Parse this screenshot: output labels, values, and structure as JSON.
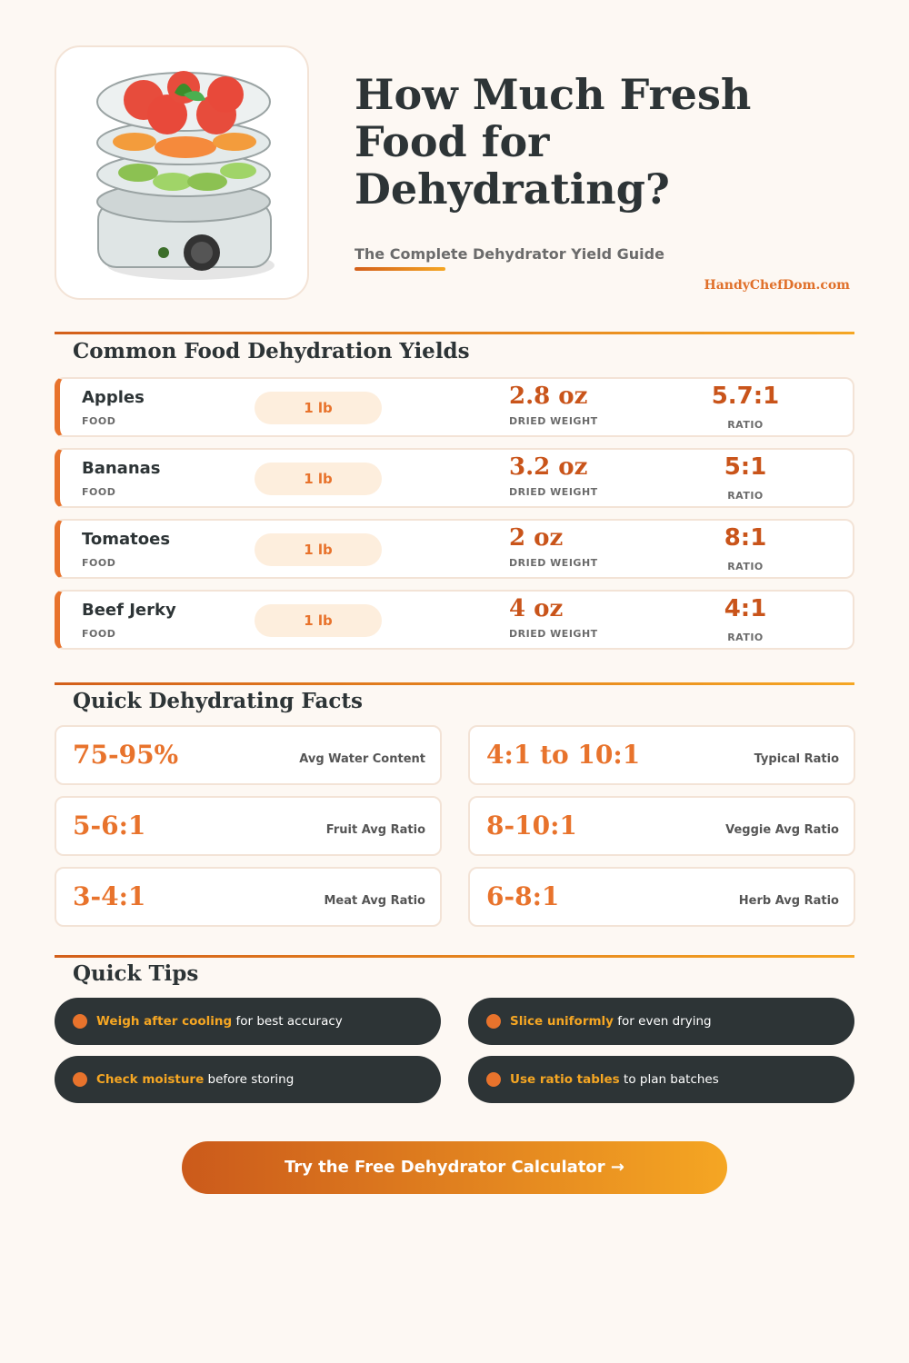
{
  "header": {
    "title": "How Much Fresh Food for Dehydrating?",
    "subtitle": "The Complete Dehydrator Yield Guide",
    "brand": "HandyChefDom.com",
    "image": "food-dehydrator-illustration"
  },
  "yields": {
    "title": "Common Food Dehydration Yields",
    "food_label": "FOOD",
    "dried_label": "DRIED WEIGHT",
    "ratio_label": "RATIO",
    "rows": [
      {
        "food": "Apples",
        "fresh": "1 lb",
        "dried": "2.8 oz",
        "ratio": "5.7:1"
      },
      {
        "food": "Bananas",
        "fresh": "1 lb",
        "dried": "3.2 oz",
        "ratio": "5:1"
      },
      {
        "food": "Tomatoes",
        "fresh": "1 lb",
        "dried": "2 oz",
        "ratio": "8:1"
      },
      {
        "food": "Beef Jerky",
        "fresh": "1 lb",
        "dried": "4 oz",
        "ratio": "4:1"
      }
    ]
  },
  "facts": {
    "title": "Quick Dehydrating Facts",
    "items": [
      {
        "value": "75-95%",
        "label": "Avg Water Content"
      },
      {
        "value": "4:1 to 10:1",
        "label": "Typical Ratio"
      },
      {
        "value": "5-6:1",
        "label": "Fruit Avg Ratio"
      },
      {
        "value": "8-10:1",
        "label": "Veggie Avg Ratio"
      },
      {
        "value": "3-4:1",
        "label": "Meat Avg Ratio"
      },
      {
        "value": "6-8:1",
        "label": "Herb Avg Ratio"
      }
    ]
  },
  "tips": {
    "title": "Quick Tips",
    "items": [
      {
        "bold": "Weigh after cooling",
        "rest": " for best accuracy"
      },
      {
        "bold": "Slice uniformly",
        "rest": " for even drying"
      },
      {
        "bold": "Check moisture",
        "rest": " before storing"
      },
      {
        "bold": "Use ratio tables",
        "rest": " to plan batches"
      }
    ]
  },
  "cta": {
    "label": "Try the Free Dehydrator Calculator →"
  },
  "colors": {
    "accent": "#e8732c",
    "accent_dark": "#c9541a",
    "gold": "#f5a623",
    "dark": "#2d3436",
    "background": "#fdf8f3"
  }
}
